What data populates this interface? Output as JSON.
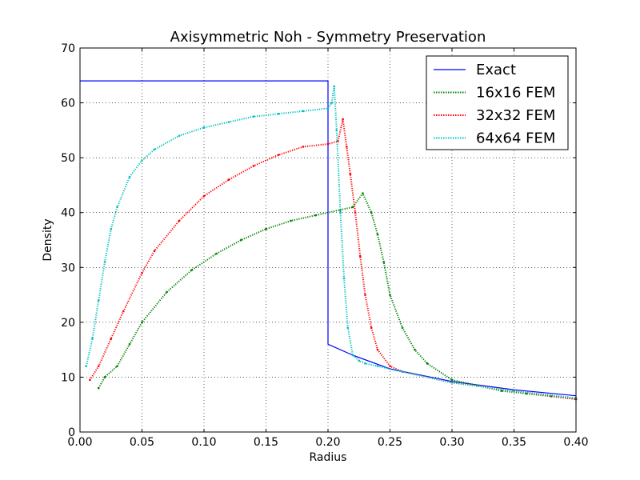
{
  "chart_data": {
    "type": "line",
    "title": "Axisymmetric Noh - Symmetry Preservation",
    "xlabel": "Radius",
    "ylabel": "Density",
    "xlim": [
      0.0,
      0.4
    ],
    "ylim": [
      0,
      70
    ],
    "x_ticks": [
      "0.00",
      "0.05",
      "0.10",
      "0.15",
      "0.20",
      "0.25",
      "0.30",
      "0.35",
      "0.40"
    ],
    "y_ticks": [
      "0",
      "10",
      "20",
      "30",
      "40",
      "50",
      "60",
      "70"
    ],
    "grid": true,
    "legend_position": "top-right",
    "series": [
      {
        "name": "Exact",
        "color": "#0000ff",
        "style": "solid",
        "x": [
          0.0,
          0.2,
          0.2,
          0.22,
          0.25,
          0.3,
          0.35,
          0.4
        ],
        "y": [
          64,
          64,
          16,
          14,
          11.5,
          9.2,
          7.7,
          6.6
        ]
      },
      {
        "name": "16x16 FEM",
        "color": "#008000",
        "style": "dotted",
        "x": [
          0.015,
          0.02,
          0.03,
          0.04,
          0.05,
          0.07,
          0.09,
          0.11,
          0.13,
          0.15,
          0.17,
          0.19,
          0.21,
          0.22,
          0.228,
          0.235,
          0.24,
          0.245,
          0.25,
          0.26,
          0.27,
          0.28,
          0.3,
          0.32,
          0.34,
          0.36,
          0.38,
          0.4
        ],
        "y": [
          8,
          10,
          12,
          16,
          20,
          25.5,
          29.5,
          32.5,
          35,
          37,
          38.5,
          39.5,
          40.5,
          41,
          43.5,
          40,
          36,
          31,
          25,
          19,
          15,
          12.5,
          9.5,
          8.5,
          7.5,
          7,
          6.5,
          6
        ]
      },
      {
        "name": "32x32 FEM",
        "color": "#ff0000",
        "style": "dotted",
        "x": [
          0.008,
          0.015,
          0.025,
          0.035,
          0.05,
          0.06,
          0.08,
          0.1,
          0.12,
          0.14,
          0.16,
          0.18,
          0.2,
          0.208,
          0.212,
          0.215,
          0.218,
          0.222,
          0.226,
          0.23,
          0.235,
          0.24,
          0.25,
          0.26,
          0.3,
          0.35,
          0.4
        ],
        "y": [
          9.5,
          12,
          17,
          22,
          29,
          33,
          38.5,
          43,
          46,
          48.5,
          50.5,
          52,
          52.5,
          53,
          57,
          52,
          47,
          40,
          32,
          25,
          19,
          15,
          12,
          11,
          9,
          7.5,
          6
        ]
      },
      {
        "name": "64x64 FEM",
        "color": "#00bfbf",
        "style": "dotted",
        "x": [
          0.005,
          0.01,
          0.015,
          0.02,
          0.025,
          0.03,
          0.04,
          0.05,
          0.06,
          0.08,
          0.1,
          0.12,
          0.14,
          0.16,
          0.18,
          0.2,
          0.203,
          0.205,
          0.207,
          0.21,
          0.213,
          0.216,
          0.22,
          0.225,
          0.23,
          0.24,
          0.26,
          0.3,
          0.35,
          0.4
        ],
        "y": [
          12,
          17,
          24,
          31,
          37,
          41,
          46.5,
          49.5,
          51.5,
          54,
          55.5,
          56.5,
          57.5,
          58,
          58.5,
          59,
          60,
          63,
          55,
          40,
          28,
          19,
          14,
          13,
          12.5,
          12,
          11,
          9,
          7.5,
          6.2
        ]
      }
    ]
  }
}
